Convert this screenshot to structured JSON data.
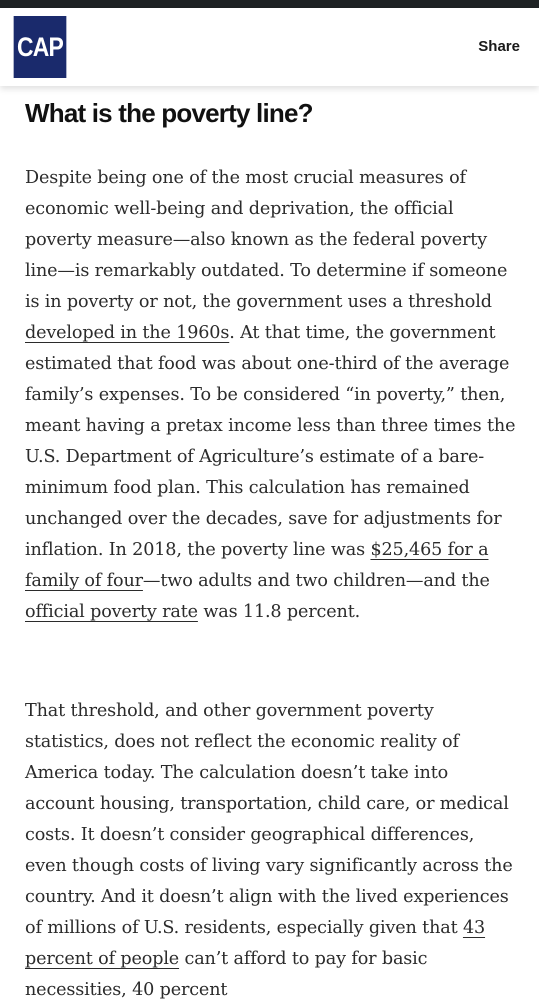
{
  "header": {
    "logo_text": "CAP",
    "share_label": "Share"
  },
  "article": {
    "heading": "What is the poverty line?",
    "p1": {
      "t1": "Despite being one of the most crucial measures of economic well-being and deprivation, the official poverty measure—also known as the federal poverty line—is remarkably outdated. To determine if someone is in poverty or not, the government uses a threshold ",
      "link1": "developed in the 1960s",
      "t2": ". At that time, the government estimated that food was about one-third of the average family’s expenses. To be considered “in poverty,” then, meant having a pretax income less than three times the U.S. Department of Agriculture’s estimate of a bare-minimum food plan. This calculation has remained unchanged over the decades, save for adjustments for inflation. In 2018, the poverty line was ",
      "link2": "$25,465 for a family of four",
      "t3": "—two adults and two children—and the ",
      "link3": "official poverty rate",
      "t4": " was 11.8 percent."
    },
    "p2": {
      "t1": "That threshold, and other government poverty statistics, does not reflect the economic reality of America today. The calculation doesn’t take into account housing, transportation, child care, or medical costs. It doesn’t consider geographical differences, even though costs of living vary significantly across the country. And it doesn’t align with the lived experiences of millions of U.S. residents, especially given that ",
      "link1": "43 percent of people",
      "t2": " can’t afford to pay for basic necessities, 40 percent"
    }
  }
}
